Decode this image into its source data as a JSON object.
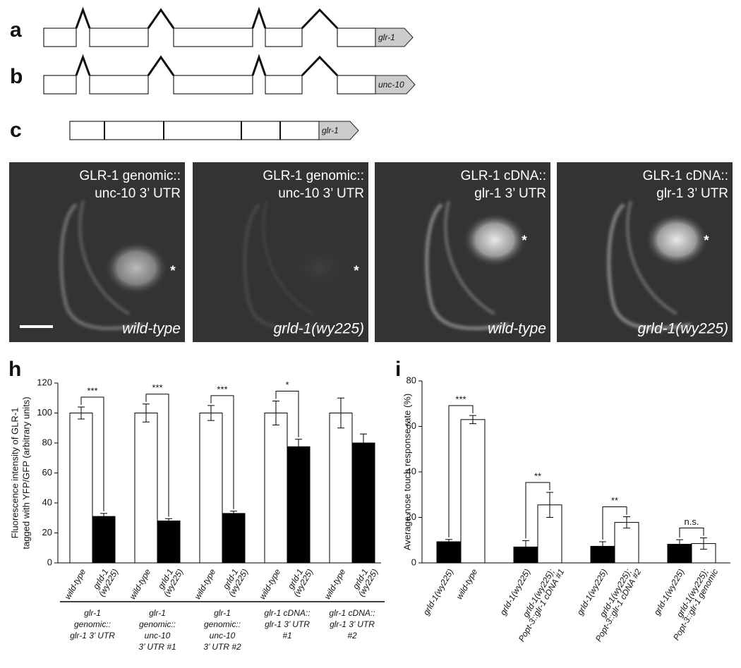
{
  "panels": {
    "a": "a",
    "b": "b",
    "c": "c",
    "h": "h",
    "i": "i"
  },
  "diagrams": [
    {
      "label": "glr-1"
    },
    {
      "label": "unc-10"
    },
    {
      "label": "glr-1"
    }
  ],
  "images": [
    {
      "title": [
        "GLR-1 genomic::",
        "unc-10 3’ UTR"
      ],
      "genotype": "wild-type"
    },
    {
      "title": [
        "GLR-1 genomic::",
        "unc-10 3’ UTR"
      ],
      "genotype": "grld-1(wy225)"
    },
    {
      "title": [
        "GLR-1 cDNA::",
        "glr-1 3’ UTR"
      ],
      "genotype": "wild-type"
    },
    {
      "title": [
        "GLR-1 cDNA::",
        "glr-1 3’ UTR"
      ],
      "genotype": "grld-1(wy225)"
    }
  ],
  "chart_data": [
    {
      "type": "bar",
      "ylabel": [
        "Fluorescence intensity of GLR-1",
        "tagged with YFP/GFP (arbitrary units)"
      ],
      "ylim": [
        0,
        120
      ],
      "yticks": [
        0,
        20,
        40,
        60,
        80,
        100,
        120
      ],
      "colors": [
        "#ffffff",
        "#000000"
      ],
      "groups": [
        {
          "label": [
            "glr-1",
            "genomic::",
            "glr-1 3’ UTR"
          ],
          "categories": [
            [
              "wild-type"
            ],
            [
              "grld-1",
              "(wy225)"
            ]
          ],
          "values": [
            100,
            31
          ],
          "errors": [
            4,
            2
          ],
          "significance": "***"
        },
        {
          "label": [
            "glr-1",
            "genomic::",
            "unc-10",
            "3’ UTR #1"
          ],
          "categories": [
            [
              "wild-type"
            ],
            [
              "grld-1",
              "(wy225)"
            ]
          ],
          "values": [
            100,
            28
          ],
          "errors": [
            6,
            1.5
          ],
          "significance": "***"
        },
        {
          "label": [
            "glr-1",
            "genomic::",
            "unc-10",
            "3’ UTR #2"
          ],
          "categories": [
            [
              "wild-type"
            ],
            [
              "grld-1",
              "(wy225)"
            ]
          ],
          "values": [
            100,
            33
          ],
          "errors": [
            5,
            1.5
          ],
          "significance": "***"
        },
        {
          "label": [
            "glr-1 cDNA::",
            "glr-1 3’ UTR",
            "#1"
          ],
          "categories": [
            [
              "wild-type"
            ],
            [
              "grld-1",
              "(wy225)"
            ]
          ],
          "values": [
            100,
            77.5
          ],
          "errors": [
            8,
            5
          ],
          "significance": "*"
        },
        {
          "label": [
            "glr-1 cDNA::",
            "glr-1 3’ UTR",
            "#2"
          ],
          "categories": [
            [
              "wild-type"
            ],
            [
              "grld-1",
              "(wy225)"
            ]
          ],
          "values": [
            100,
            80
          ],
          "errors": [
            10,
            6
          ]
        }
      ]
    },
    {
      "type": "bar",
      "ylabel": [
        "Average nose touch response rate (%)"
      ],
      "ylim": [
        0,
        80
      ],
      "yticks": [
        0,
        20,
        40,
        60,
        80
      ],
      "colors": [
        "#000000",
        "#ffffff"
      ],
      "groups": [
        {
          "categories": [
            [
              "grld-1(wy225)"
            ],
            [
              "wild-type"
            ]
          ],
          "values": [
            9.3,
            63
          ],
          "errors": [
            1,
            1.8
          ],
          "significance": "***"
        },
        {
          "categories": [
            [
              "grld-1(wy225)"
            ],
            [
              "grld-1(wy225);",
              "Popt-3::glr-1 cDNA #1"
            ]
          ],
          "values": [
            7,
            25.5
          ],
          "errors": [
            2.8,
            5.5
          ],
          "significance": "**"
        },
        {
          "categories": [
            [
              "grld-1(wy225)"
            ],
            [
              "grld-1(wy225);",
              "Popt-3::glr-1 cDNA #2"
            ]
          ],
          "values": [
            7.3,
            17.8
          ],
          "errors": [
            2,
            2.5
          ],
          "significance": "**"
        },
        {
          "categories": [
            [
              "grld-1(wy225)"
            ],
            [
              "grld-1(wy225);",
              "Popt-3::glr-1 genomic"
            ]
          ],
          "values": [
            8.2,
            8.5
          ],
          "errors": [
            2,
            2.5
          ],
          "significance": "n.s."
        }
      ]
    }
  ]
}
